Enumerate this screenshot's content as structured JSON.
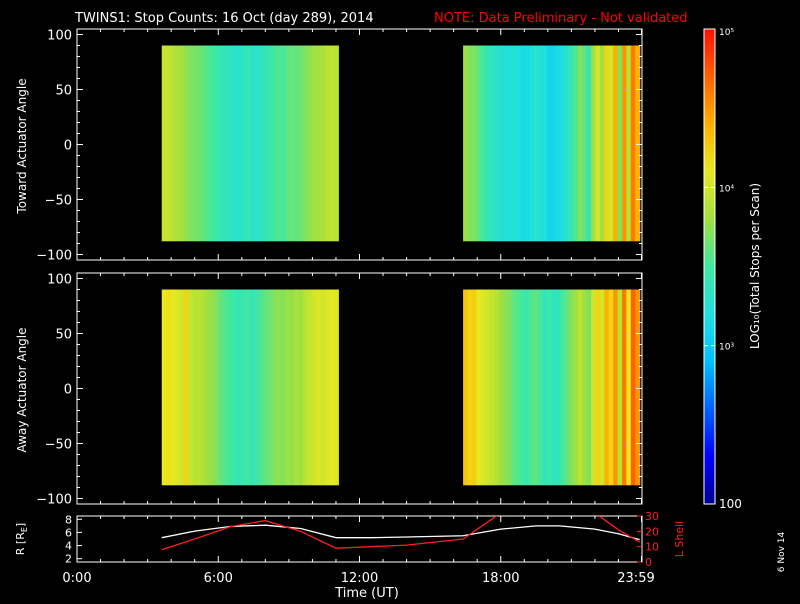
{
  "header": {
    "title": "TWINS1: Stop Counts: 16 Oct (day 289), 2014",
    "note": "NOTE: Data Preliminary - Not validated"
  },
  "colors": {
    "background": "#000000",
    "text": "#ffffff",
    "note": "#ff0000",
    "r_line": "#ffffff",
    "lshell_line": "#ff2020",
    "colormap": [
      "#000090",
      "#0000ff",
      "#0060ff",
      "#00c0ff",
      "#20e0e0",
      "#40e8a0",
      "#a0e040",
      "#e8e820",
      "#ffb000",
      "#ff6000",
      "#ff1000"
    ]
  },
  "colorbar": {
    "label": "LOG₁₀(Total Stops per Scan)",
    "ticks": [
      {
        "label": "100",
        "value": 100
      },
      {
        "label": "10³",
        "value": 1000
      },
      {
        "label": "10⁴",
        "value": 10000
      },
      {
        "label": "10⁵",
        "value": 100000
      }
    ]
  },
  "x_axis": {
    "label": "Time (UT)",
    "ticks": [
      "0:00",
      "6:00",
      "12:00",
      "18:00",
      "23:59"
    ]
  },
  "side_label": "6 Nov 14",
  "chart_data": [
    {
      "type": "heatmap",
      "name": "toward",
      "ylabel": "Toward Actuator Angle",
      "yticks": [
        "100",
        "50",
        "0",
        "−50",
        "−100"
      ],
      "xlim": [
        0,
        24
      ],
      "ylim": [
        -105,
        105
      ],
      "zscale": "log",
      "zlim": [
        100,
        100000
      ],
      "angle_range": [
        -88,
        90
      ],
      "segments": [
        {
          "start": 3.6,
          "end": 11.1,
          "log_counts": [
            3.95,
            3.95,
            3.9,
            3.85,
            3.82,
            3.75,
            3.7,
            3.68,
            3.65,
            3.6,
            3.55,
            3.5,
            3.45,
            3.4,
            3.38,
            3.35,
            3.3,
            3.28,
            3.35,
            3.4,
            3.3,
            3.3,
            3.35,
            3.4,
            3.45,
            3.5,
            3.55,
            3.5,
            3.6,
            3.62,
            3.6,
            3.65,
            3.7,
            3.75,
            3.8,
            3.82,
            3.85,
            3.9,
            3.92,
            3.9
          ]
        },
        {
          "start": 16.4,
          "end": 23.9,
          "log_counts": [
            3.8,
            3.7,
            3.7,
            3.6,
            3.5,
            3.4,
            3.35,
            3.3,
            3.25,
            3.25,
            3.2,
            3.25,
            3.2,
            3.15,
            3.15,
            3.2,
            3.3,
            3.25,
            3.2,
            3.1,
            3.1,
            3.15,
            3.2,
            3.3,
            3.4,
            3.55,
            3.7,
            3.6,
            3.4,
            3.8,
            4.0,
            3.8,
            4.2,
            4.0,
            4.4,
            3.7,
            4.5,
            3.9,
            4.6,
            4.4
          ]
        }
      ]
    },
    {
      "type": "heatmap",
      "name": "away",
      "ylabel": "Away Actuator Angle",
      "yticks": [
        "100",
        "50",
        "0",
        "−50",
        "−100"
      ],
      "xlim": [
        0,
        24
      ],
      "ylim": [
        -105,
        105
      ],
      "zscale": "log",
      "zlim": [
        100,
        100000
      ],
      "angle_range": [
        -88,
        90
      ],
      "segments": [
        {
          "start": 3.6,
          "end": 11.1,
          "log_counts": [
            4.1,
            4.15,
            4.1,
            4.05,
            4.0,
            4.2,
            3.95,
            3.9,
            3.9,
            3.85,
            3.8,
            3.75,
            3.7,
            3.6,
            3.55,
            3.5,
            3.45,
            3.4,
            3.45,
            3.5,
            3.4,
            3.45,
            3.55,
            3.6,
            3.65,
            3.7,
            3.75,
            3.7,
            3.8,
            3.75,
            3.85,
            3.8,
            3.9,
            3.95,
            4.0,
            4.05,
            4.0,
            4.05,
            4.1,
            4.05
          ]
        },
        {
          "start": 16.4,
          "end": 23.9,
          "log_counts": [
            4.3,
            4.2,
            4.25,
            4.1,
            4.05,
            4.0,
            3.95,
            3.9,
            3.8,
            3.75,
            3.7,
            3.6,
            3.55,
            3.5,
            3.45,
            3.55,
            3.6,
            3.5,
            3.4,
            3.45,
            3.35,
            3.4,
            3.5,
            3.6,
            3.7,
            3.8,
            3.9,
            3.8,
            3.7,
            4.0,
            4.2,
            4.0,
            4.4,
            4.2,
            4.5,
            3.9,
            4.6,
            4.1,
            4.7,
            4.5
          ]
        }
      ]
    },
    {
      "type": "line",
      "name": "orbit",
      "ylabel_left": "R [R",
      "ylabel_left_sub": "E",
      "ylabel_left_close": "]",
      "ylabel_right": "L Shell",
      "yticks_left": [
        "8",
        "6",
        "4",
        "2"
      ],
      "yticks_right": [
        "30",
        "20",
        "10",
        "0"
      ],
      "ylim_left": [
        1.5,
        8.5
      ],
      "ylim_right": [
        0,
        30
      ],
      "x": [
        3.6,
        5.0,
        6.5,
        8.0,
        9.5,
        11.0,
        12.5,
        14.0,
        16.4,
        18.0,
        19.5,
        20.5,
        22.0,
        23.0,
        23.9
      ],
      "series": [
        {
          "axis": "left",
          "values": [
            5.2,
            6.2,
            6.9,
            7.1,
            6.6,
            5.2,
            5.2,
            5.3,
            5.5,
            6.5,
            7.0,
            7.0,
            6.5,
            5.8,
            4.9
          ]
        },
        {
          "axis": "right",
          "values": [
            8.0,
            15.0,
            23.0,
            27.0,
            20.0,
            9.0,
            10.0,
            11.0,
            15.0,
            32.0,
            32.0,
            32.0,
            32.0,
            21.0,
            13.0
          ]
        }
      ]
    }
  ]
}
